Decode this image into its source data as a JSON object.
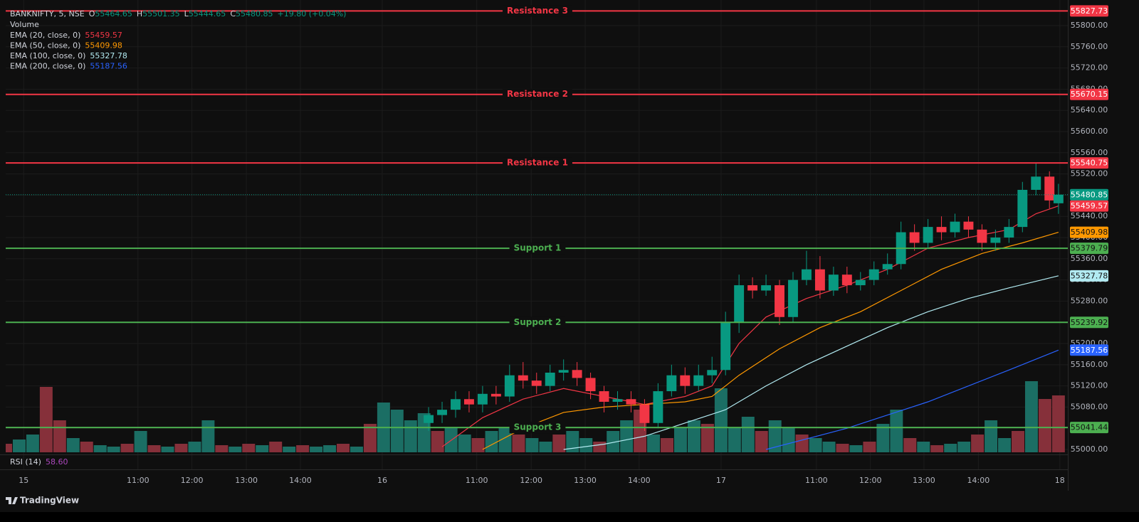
{
  "chart_data": {
    "type": "candlestick",
    "title": "BANKNIFTY, 5, NSE",
    "ohlc_labels": [
      "O",
      "H",
      "L",
      "C"
    ],
    "change_label": "+19.80 (+0.04%)",
    "volume_label": "Volume",
    "up_color": "#089981",
    "down_color": "#f23645",
    "grid": true,
    "grid_color": "#1c1c1c",
    "xlim": [
      0,
      236
    ],
    "xticks": [
      {
        "value": 4,
        "label": "15"
      },
      {
        "value": 29.4,
        "label": "11:00"
      },
      {
        "value": 41.4,
        "label": "12:00"
      },
      {
        "value": 53.5,
        "label": "13:00"
      },
      {
        "value": 65.5,
        "label": "14:00"
      },
      {
        "value": 83.7,
        "label": "16"
      },
      {
        "value": 104.7,
        "label": "11:00"
      },
      {
        "value": 116.8,
        "label": "12:00"
      },
      {
        "value": 128.8,
        "label": "13:00"
      },
      {
        "value": 140.8,
        "label": "14:00"
      },
      {
        "value": 159,
        "label": "17"
      },
      {
        "value": 180.2,
        "label": "11:00"
      },
      {
        "value": 192.2,
        "label": "12:00"
      },
      {
        "value": 204.1,
        "label": "13:00"
      },
      {
        "value": 216.2,
        "label": "14:00"
      },
      {
        "value": 234.3,
        "label": "18"
      }
    ],
    "ylim": [
      54989.3,
      55848.3
    ],
    "yticks": [
      {
        "value": 55000,
        "label": "55000.00"
      },
      {
        "value": 55040,
        "label": "55040.00"
      },
      {
        "value": 55080,
        "label": "55080.00"
      },
      {
        "value": 55120,
        "label": "55120.00"
      },
      {
        "value": 55160,
        "label": "55160.00"
      },
      {
        "value": 55200,
        "label": "55200.00"
      },
      {
        "value": 55240,
        "label": "55240.00"
      },
      {
        "value": 55280,
        "label": "55280.00"
      },
      {
        "value": 55320,
        "label": "55320.00"
      },
      {
        "value": 55360,
        "label": "55360.00"
      },
      {
        "value": 55400,
        "label": "55400.00"
      },
      {
        "value": 55440,
        "label": "55440.00"
      },
      {
        "value": 55480,
        "label": "55480.00"
      },
      {
        "value": 55520,
        "label": "55520.00"
      },
      {
        "value": 55560,
        "label": "55560.00"
      },
      {
        "value": 55600,
        "label": "55600.00"
      },
      {
        "value": 55640,
        "label": "55640.00"
      },
      {
        "value": 55680,
        "label": "55680.00"
      },
      {
        "value": 55720,
        "label": "55720.00"
      },
      {
        "value": 55760,
        "label": "55760.00"
      },
      {
        "value": 55800,
        "label": "55800.00"
      }
    ],
    "x": [
      94,
      97,
      100,
      103,
      106,
      109,
      112,
      115,
      118,
      121,
      124,
      127,
      130,
      133,
      136,
      139,
      142,
      145,
      148,
      151,
      154,
      157,
      160,
      163,
      166,
      169,
      172,
      175,
      178,
      181,
      184,
      187,
      190,
      193,
      196,
      199,
      202,
      205,
      208,
      211,
      214,
      217,
      220,
      223,
      226,
      229,
      232,
      234
    ],
    "open": [
      55050,
      55065,
      55075,
      55095,
      55085,
      55105,
      55100,
      55140,
      55130,
      55120,
      55145,
      55150,
      55135,
      55110,
      55090,
      55095,
      55085,
      55050,
      55110,
      55140,
      55120,
      55140,
      55150,
      55240,
      55310,
      55300,
      55310,
      55250,
      55320,
      55340,
      55300,
      55330,
      55310,
      55320,
      55340,
      55350,
      55410,
      55390,
      55420,
      55410,
      55430,
      55415,
      55390,
      55400,
      55420,
      55490,
      55515,
      55464.65
    ],
    "high": [
      55080,
      55090,
      55110,
      55110,
      55120,
      55120,
      55160,
      55165,
      55145,
      55160,
      55170,
      55165,
      55145,
      55120,
      55110,
      55110,
      55095,
      55125,
      55160,
      55155,
      55160,
      55175,
      55260,
      55330,
      55325,
      55330,
      55320,
      55335,
      55375,
      55365,
      55345,
      55345,
      55335,
      55355,
      55370,
      55430,
      55425,
      55435,
      55440,
      55445,
      55440,
      55425,
      55415,
      55435,
      55505,
      55540,
      55525,
      55501.35
    ],
    "low": [
      55035,
      55050,
      55060,
      55070,
      55070,
      55085,
      55090,
      55115,
      55105,
      55110,
      55130,
      55120,
      55095,
      55070,
      55075,
      55070,
      55035,
      55040,
      55100,
      55105,
      55110,
      55125,
      55140,
      55220,
      55285,
      55290,
      55235,
      55240,
      55310,
      55285,
      55290,
      55295,
      55300,
      55310,
      55330,
      55340,
      55375,
      55380,
      55395,
      55400,
      55400,
      55375,
      55375,
      55390,
      55410,
      55480,
      55455,
      55444.65
    ],
    "close": [
      55065,
      55075,
      55095,
      55085,
      55105,
      55100,
      55140,
      55130,
      55120,
      55145,
      55150,
      55135,
      55110,
      55090,
      55095,
      55085,
      55050,
      55110,
      55140,
      55120,
      55140,
      55150,
      55240,
      55310,
      55300,
      55310,
      55250,
      55320,
      55340,
      55300,
      55330,
      55310,
      55320,
      55340,
      55350,
      55410,
      55390,
      55420,
      55410,
      55430,
      55415,
      55390,
      55400,
      55420,
      55490,
      55515,
      55470,
      55480.85
    ],
    "last_price_color": "#089981",
    "volume": {
      "ylim": [
        0,
        140
      ],
      "x": [
        0,
        3,
        6,
        9,
        12,
        15,
        18,
        21,
        24,
        27,
        30,
        33,
        36,
        39,
        42,
        45,
        48,
        51,
        54,
        57,
        60,
        63,
        66,
        69,
        72,
        75,
        78,
        81,
        84,
        87,
        90,
        93,
        96,
        99,
        102,
        105,
        108,
        111,
        114,
        117,
        120,
        123,
        126,
        129,
        132,
        135,
        138,
        141,
        144,
        147,
        150,
        153,
        156,
        159,
        162,
        165,
        168,
        171,
        174,
        177,
        180,
        183,
        186,
        189,
        192,
        195,
        198,
        201,
        204,
        207,
        210,
        213,
        216,
        219,
        222,
        225,
        228,
        231,
        234
      ],
      "values": [
        12,
        18,
        25,
        92,
        45,
        20,
        15,
        10,
        8,
        12,
        30,
        10,
        8,
        12,
        15,
        45,
        10,
        8,
        12,
        10,
        15,
        8,
        10,
        8,
        10,
        12,
        8,
        40,
        70,
        60,
        45,
        55,
        30,
        35,
        25,
        20,
        30,
        35,
        25,
        20,
        15,
        25,
        30,
        20,
        15,
        30,
        45,
        60,
        25,
        20,
        35,
        45,
        40,
        90,
        35,
        50,
        30,
        45,
        35,
        25,
        20,
        15,
        12,
        10,
        15,
        40,
        60,
        20,
        15,
        10,
        12,
        15,
        25,
        45,
        20,
        30,
        100,
        75,
        80
      ],
      "colors": [
        "#86303a",
        "#1b6e64",
        "#1b6e64",
        "#86303a",
        "#86303a",
        "#1b6e64",
        "#86303a",
        "#1b6e64",
        "#1b6e64",
        "#86303a",
        "#1b6e64",
        "#86303a",
        "#1b6e64",
        "#86303a",
        "#1b6e64",
        "#1b6e64",
        "#86303a",
        "#1b6e64",
        "#86303a",
        "#1b6e64",
        "#86303a",
        "#1b6e64",
        "#86303a",
        "#1b6e64",
        "#1b6e64",
        "#86303a",
        "#1b6e64",
        "#86303a",
        "#1b6e64",
        "#1b6e64",
        "#1b6e64",
        "#1b6e64",
        "#86303a",
        "#1b6e64",
        "#1b6e64",
        "#86303a",
        "#1b6e64",
        "#1b6e64",
        "#86303a",
        "#1b6e64",
        "#1b6e64",
        "#86303a",
        "#1b6e64",
        "#1b6e64",
        "#86303a",
        "#1b6e64",
        "#1b6e64",
        "#86303a",
        "#1b6e64",
        "#86303a",
        "#1b6e64",
        "#1b6e64",
        "#86303a",
        "#1b6e64",
        "#1b6e64",
        "#1b6e64",
        "#86303a",
        "#1b6e64",
        "#1b6e64",
        "#86303a",
        "#1b6e64",
        "#1b6e64",
        "#86303a",
        "#1b6e64",
        "#86303a",
        "#1b6e64",
        "#1b6e64",
        "#86303a",
        "#1b6e64",
        "#86303a",
        "#1b6e64",
        "#1b6e64",
        "#86303a",
        "#1b6e64",
        "#1b6e64",
        "#86303a",
        "#1b6e64",
        "#86303a",
        "#86303a"
      ]
    },
    "series": [
      {
        "name": "EMA (20, close, 0)",
        "color": "#f23645",
        "tag_text_color": "#ffffff",
        "x": [
          97,
          106,
          115,
          124,
          133,
          142,
          151,
          157,
          163,
          169,
          178,
          187,
          196,
          205,
          214,
          223,
          229,
          234
        ],
        "values": [
          55005,
          55060,
          55095,
          55115,
          55100,
          55085,
          55100,
          55120,
          55200,
          55250,
          55285,
          55310,
          55340,
          55380,
          55400,
          55415,
          55445,
          55459.57
        ]
      },
      {
        "name": "EMA (50, close, 0)",
        "color": "#ff9800",
        "tag_text_color": "#131313",
        "x": [
          106,
          115,
          124,
          133,
          142,
          151,
          157,
          163,
          172,
          181,
          190,
          199,
          208,
          217,
          226,
          234
        ],
        "values": [
          55000,
          55040,
          55070,
          55080,
          55085,
          55090,
          55100,
          55140,
          55190,
          55230,
          55260,
          55300,
          55340,
          55370,
          55390,
          55409.98
        ]
      },
      {
        "name": "EMA (100, close, 0)",
        "color": "#b2ebf2",
        "tag_text_color": "#131313",
        "x": [
          124,
          133,
          142,
          151,
          160,
          169,
          178,
          187,
          196,
          205,
          214,
          223,
          234
        ],
        "values": [
          55000,
          55010,
          55025,
          55050,
          55075,
          55120,
          55160,
          55195,
          55230,
          55260,
          55285,
          55305,
          55327.78
        ]
      },
      {
        "name": "EMA (200, close, 0)",
        "color": "#2962ff",
        "tag_text_color": "#ffffff",
        "x": [
          169,
          187,
          205,
          223,
          234
        ],
        "values": [
          55000,
          55040,
          55090,
          55150,
          55187.56
        ]
      }
    ],
    "levels": [
      {
        "name": "Resistance 3",
        "value": 55827.73,
        "color": "#f23645",
        "text_color": "#ffffff"
      },
      {
        "name": "Resistance 2",
        "value": 55670.15,
        "color": "#f23645",
        "text_color": "#ffffff"
      },
      {
        "name": "Resistance 1",
        "value": 55540.75,
        "color": "#f23645",
        "text_color": "#ffffff"
      },
      {
        "name": "Support 1",
        "value": 55379.79,
        "color": "#4caf50",
        "text_color": "#131313"
      },
      {
        "name": "Support 2",
        "value": 55239.92,
        "color": "#4caf50",
        "text_color": "#131313"
      },
      {
        "name": "Support 3",
        "value": 55041.44,
        "color": "#4caf50",
        "text_color": "#131313"
      }
    ],
    "rsi": {
      "name": "RSI (14)",
      "value_label": "58.60",
      "color": "#ab47bc"
    },
    "brand": "TradingView"
  }
}
